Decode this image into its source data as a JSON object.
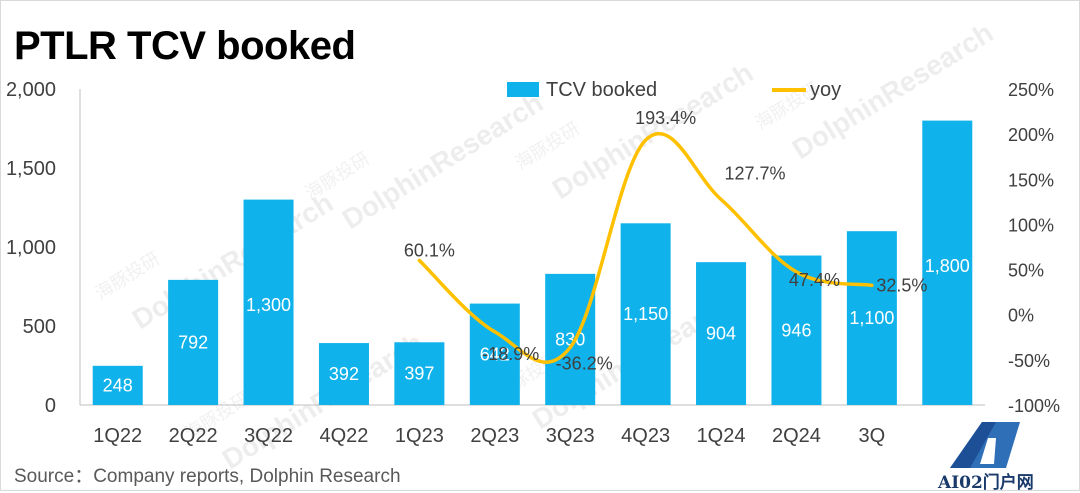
{
  "title": "PTLR TCV booked",
  "source": "Source：Company reports, Dolphin Research",
  "watermark": {
    "text_cn": "海豚投研",
    "text_en": "DolphinResearch"
  },
  "logo": {
    "text": "AI02门户网",
    "icon": "triangle-a-logo-icon"
  },
  "colors": {
    "bar": "#0fb2ea",
    "line": "#ffc000",
    "text": "#404040",
    "bar_label": "#ffffff"
  },
  "chart_data": {
    "type": "bar",
    "categories": [
      "1Q22",
      "2Q22",
      "3Q22",
      "4Q22",
      "1Q23",
      "2Q23",
      "3Q23",
      "4Q23",
      "1Q24",
      "2Q24",
      "3Q",
      ""
    ],
    "series": [
      {
        "name": "TCV booked",
        "type": "bar",
        "axis": "left",
        "values": [
          248,
          792,
          1300,
          392,
          397,
          642,
          830,
          1150,
          904,
          946,
          1100,
          1800
        ],
        "labels": [
          "248",
          "792",
          "1,300",
          "392",
          "397",
          "642",
          "830",
          "1,150",
          "904",
          "946",
          "1,100",
          "1,800"
        ]
      },
      {
        "name": "yoy",
        "type": "line",
        "axis": "right",
        "values": [
          null,
          null,
          null,
          null,
          60.1,
          -18.9,
          -36.2,
          193.4,
          127.7,
          47.4,
          32.5,
          null
        ],
        "labels": [
          "",
          "",
          "",
          "",
          "60.1%",
          "-18.9%",
          "-36.2%",
          "193.4%",
          "127.7%",
          "47.4%",
          "32.5%",
          ""
        ]
      }
    ],
    "ylim": [
      0,
      2000
    ],
    "yticks": [
      "0",
      "500",
      "1,000",
      "1,500",
      "2,000"
    ],
    "ytick_values": [
      0,
      500,
      1000,
      1500,
      2000
    ],
    "y2lim": [
      -100,
      250
    ],
    "y2ticks": [
      "-100%",
      "-50%",
      "0%",
      "50%",
      "100%",
      "150%",
      "200%",
      "250%"
    ],
    "y2tick_values": [
      -100,
      -50,
      0,
      50,
      100,
      150,
      200,
      250
    ],
    "legend": {
      "placement": "top",
      "entries": [
        "TCV booked",
        "yoy"
      ]
    },
    "grid": false
  }
}
